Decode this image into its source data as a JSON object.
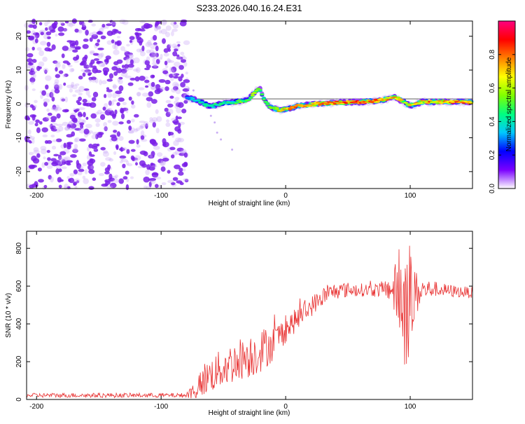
{
  "page_title": "S233.2026.040.16.24.E31",
  "chart_data": [
    {
      "type": "heatmap",
      "title": "S233.2026.040.16.24.E31",
      "xlabel": "Height of straight line (km)",
      "ylabel": "Frequency (Hz)",
      "xlim": [
        -208,
        150
      ],
      "ylim": [
        -25,
        24.5
      ],
      "x_ticks": [
        -200,
        -100,
        0,
        100
      ],
      "y_ticks": [
        -20,
        -10,
        0,
        10,
        20
      ],
      "colorbar": {
        "label": "Normalized spectral amplitude",
        "range": [
          0,
          1
        ],
        "ticks": [
          0.0,
          0.2,
          0.4,
          0.6,
          0.8
        ],
        "colors": [
          "#ffffff",
          "#7a00ff",
          "#0000ff",
          "#00c8ff",
          "#00ff80",
          "#80ff00",
          "#ffff00",
          "#ff8000",
          "#ff0000",
          "#ff0080"
        ]
      },
      "noise_region_x": [
        -208,
        -79
      ],
      "ridge": [
        {
          "x": -79,
          "y": 2.0,
          "amp": 0.35
        },
        {
          "x": -70,
          "y": 0.8,
          "amp": 0.4
        },
        {
          "x": -60,
          "y": -0.8,
          "amp": 0.45
        },
        {
          "x": -50,
          "y": 0.3,
          "amp": 0.45
        },
        {
          "x": -40,
          "y": 0.6,
          "amp": 0.5
        },
        {
          "x": -30,
          "y": 1.2,
          "amp": 0.55
        },
        {
          "x": -25,
          "y": 3.5,
          "amp": 0.6
        },
        {
          "x": -21,
          "y": 4.8,
          "amp": 0.55
        },
        {
          "x": -17,
          "y": 1.0,
          "amp": 0.5
        },
        {
          "x": -12,
          "y": -1.0,
          "amp": 0.55
        },
        {
          "x": -5,
          "y": -1.8,
          "amp": 0.7
        },
        {
          "x": 0,
          "y": -1.5,
          "amp": 0.75
        },
        {
          "x": 10,
          "y": -0.6,
          "amp": 0.8
        },
        {
          "x": 25,
          "y": 0.0,
          "amp": 0.8
        },
        {
          "x": 40,
          "y": 0.4,
          "amp": 0.85
        },
        {
          "x": 60,
          "y": 0.6,
          "amp": 0.85
        },
        {
          "x": 75,
          "y": 1.0,
          "amp": 0.8
        },
        {
          "x": 88,
          "y": 2.0,
          "amp": 0.75
        },
        {
          "x": 95,
          "y": 0.5,
          "amp": 0.7
        },
        {
          "x": 100,
          "y": -0.6,
          "amp": 0.7
        },
        {
          "x": 110,
          "y": 0.6,
          "amp": 0.75
        },
        {
          "x": 130,
          "y": 0.6,
          "amp": 0.8
        },
        {
          "x": 150,
          "y": 0.5,
          "amp": 0.8
        }
      ],
      "reference_line_y": 1.5
    },
    {
      "type": "line",
      "xlabel": "Height of straight line (km)",
      "ylabel": "SNR (10 * v/v)",
      "xlim": [
        -208,
        150
      ],
      "ylim": [
        0,
        890
      ],
      "x_ticks": [
        -200,
        -100,
        0,
        100
      ],
      "y_ticks": [
        0,
        200,
        400,
        600,
        800
      ],
      "color": "#e83030",
      "series": [
        {
          "name": "SNR",
          "x": [
            -208,
            -150,
            -100,
            -80,
            -72,
            -65,
            -55,
            -45,
            -35,
            -25,
            -15,
            -10,
            0,
            10,
            20,
            30,
            40,
            50,
            60,
            70,
            80,
            85,
            90,
            95,
            100,
            105,
            110,
            120,
            130,
            140,
            150
          ],
          "mean": [
            22,
            22,
            22,
            22,
            55,
            110,
            150,
            185,
            220,
            240,
            280,
            300,
            370,
            430,
            490,
            545,
            575,
            580,
            580,
            578,
            585,
            585,
            560,
            520,
            530,
            560,
            580,
            585,
            575,
            570,
            565
          ],
          "spread": [
            12,
            12,
            12,
            12,
            60,
            90,
            100,
            110,
            115,
            120,
            110,
            95,
            70,
            60,
            55,
            50,
            45,
            40,
            35,
            35,
            45,
            80,
            200,
            380,
            320,
            120,
            60,
            40,
            35,
            30,
            30
          ]
        }
      ]
    }
  ]
}
